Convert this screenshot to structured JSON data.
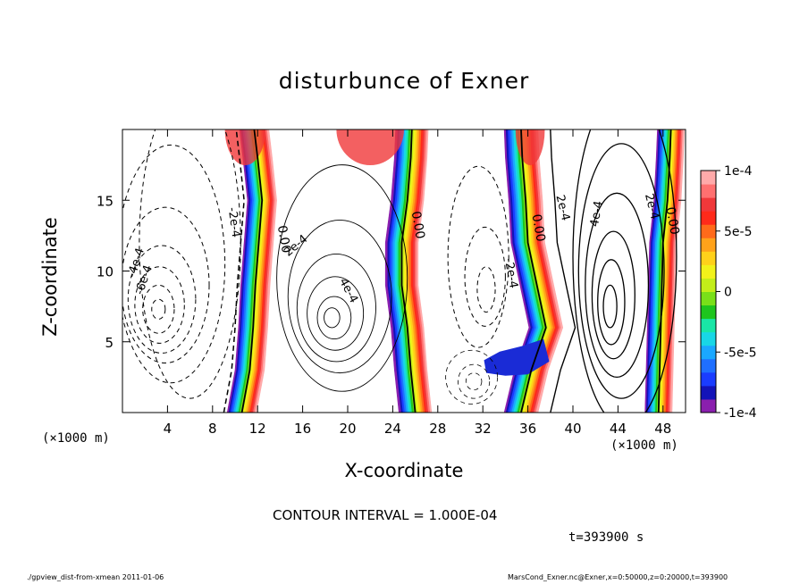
{
  "page": {
    "footer_left": "./gpview_dist-from-xmean  2011-01-06",
    "footer_right": "MarsCond_Exner.nc@Exner,x=0:50000,z=0:20000,t=393900"
  },
  "chart_data": {
    "type": "heatmap",
    "title": "disturbunce of Exner",
    "xlabel": "X-coordinate",
    "ylabel": "Z-coordinate",
    "x_unit_label": "(×1000 m)",
    "x_unit_label_right": "(×1000 m)",
    "xlim": [
      0,
      50
    ],
    "ylim": [
      0,
      20
    ],
    "x_ticks": [
      4,
      8,
      12,
      16,
      20,
      24,
      28,
      32,
      36,
      40,
      44,
      48
    ],
    "y_ticks": [
      5,
      10,
      15
    ],
    "contour_interval_text": "CONTOUR INTERVAL = 1.000E-04",
    "time_text": "t=393900 s",
    "colorbar": {
      "range": [
        -0.0001,
        0.0001
      ],
      "tick_values": [
        0.0001,
        5e-05,
        0,
        -5e-05,
        -0.0001
      ],
      "tick_labels": [
        "1e-4",
        "5e-5",
        "0",
        "-5e-5",
        "-1e-4"
      ],
      "colors": [
        "#8a1fae",
        "#1313b8",
        "#1a3cff",
        "#1f6fff",
        "#1aa8ff",
        "#18d7e6",
        "#19e6a6",
        "#1ec51e",
        "#79e019",
        "#c3ee19",
        "#f2f21a",
        "#ffd11a",
        "#ffa21a",
        "#ff6a1a",
        "#ff2a1a",
        "#f0383a",
        "#ff7070",
        "#ffaaaa"
      ]
    },
    "zero_line_labels": [
      {
        "text": "0.00",
        "x": 14.0,
        "y": 12.2
      },
      {
        "text": "0.00",
        "x": 25.9,
        "y": 13.2
      },
      {
        "text": "0.00",
        "x": 36.6,
        "y": 13.0
      },
      {
        "text": "0.00",
        "x": 48.5,
        "y": 13.5
      }
    ],
    "contour_labels": [
      {
        "text": "-2e-4",
        "x": 9.6,
        "y": 13.4,
        "angle": 82
      },
      {
        "text": "-4e-4",
        "x": 1.5,
        "y": 10.5,
        "angle": -72
      },
      {
        "text": "-6e-4",
        "x": 2.2,
        "y": 9.3,
        "angle": -72
      },
      {
        "text": "2e-4",
        "x": 15.6,
        "y": 11.6,
        "angle": -40
      },
      {
        "text": "4e-4",
        "x": 19.8,
        "y": 8.5,
        "angle": 62
      },
      {
        "text": "-2e-4",
        "x": 34.2,
        "y": 9.8,
        "angle": 80
      },
      {
        "text": "2e-4",
        "x": 38.8,
        "y": 14.4,
        "angle": 76
      },
      {
        "text": "4e-4",
        "x": 42.4,
        "y": 14.0,
        "angle": -80
      },
      {
        "text": "2e-4",
        "x": 46.7,
        "y": 14.5,
        "angle": 76
      }
    ]
  }
}
